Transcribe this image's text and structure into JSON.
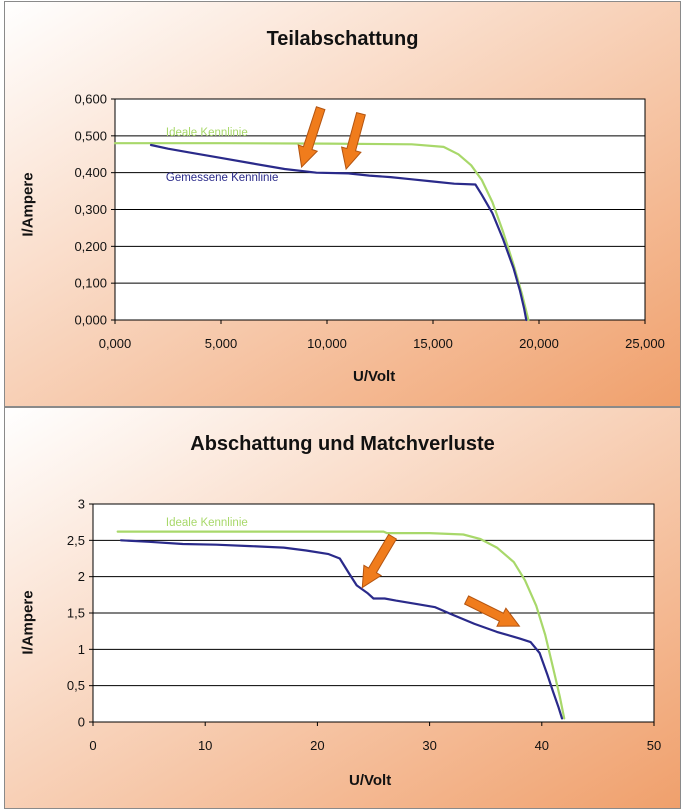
{
  "colors": {
    "ideal": "#a8d86a",
    "measured": "#2a2a8a",
    "arrow_fill": "#f07c1c",
    "arrow_stroke": "#b35410",
    "grid": "#000000",
    "plot_bg": "#ffffff",
    "panel_grad_start": "#ffffff",
    "panel_grad_end": "#f0a06c"
  },
  "chart_data": [
    {
      "type": "line",
      "title": "Teilabschattung",
      "xlabel": "U/Volt",
      "ylabel": "I/Ampere",
      "xlim": [
        0,
        25
      ],
      "ylim": [
        0,
        0.6
      ],
      "x_ticks": [
        0,
        5,
        10,
        15,
        20,
        25
      ],
      "x_tick_labels": [
        "0,000",
        "5,000",
        "10,000",
        "15,000",
        "20,000",
        "25,000"
      ],
      "y_ticks": [
        0,
        0.1,
        0.2,
        0.3,
        0.4,
        0.5,
        0.6
      ],
      "y_tick_labels": [
        "0,000",
        "0,100",
        "0,200",
        "0,300",
        "0,400",
        "0,500",
        "0,600"
      ],
      "grid": "horizontal",
      "series": [
        {
          "name": "Ideale Kennlinie",
          "color_key": "ideal",
          "x": [
            0,
            5,
            10,
            14,
            15.5,
            16.2,
            16.8,
            17.3,
            17.8,
            18.3,
            18.8,
            19.2,
            19.5
          ],
          "y": [
            0.48,
            0.48,
            0.479,
            0.477,
            0.47,
            0.45,
            0.42,
            0.38,
            0.32,
            0.24,
            0.15,
            0.07,
            0.0
          ]
        },
        {
          "name": "Gemessene Kennlinie",
          "color_key": "measured",
          "x": [
            1.7,
            2.5,
            3.5,
            5,
            6.5,
            8,
            9.5,
            11,
            12,
            13,
            14,
            15,
            16,
            17,
            17.3,
            17.8,
            18.3,
            18.8,
            19.1,
            19.3,
            19.4
          ],
          "y": [
            0.475,
            0.465,
            0.455,
            0.44,
            0.425,
            0.41,
            0.4,
            0.398,
            0.392,
            0.388,
            0.382,
            0.376,
            0.37,
            0.368,
            0.34,
            0.29,
            0.22,
            0.14,
            0.08,
            0.03,
            0.0
          ]
        }
      ],
      "annotations": [
        {
          "text": "Ideale Kennlinie",
          "x": 2.4,
          "y": 0.5,
          "color_key": "ideal"
        },
        {
          "text": "Gemessene Kennlinie",
          "x": 2.4,
          "y": 0.378,
          "color_key": "measured"
        }
      ],
      "arrows": [
        {
          "tip_x": 8.8,
          "tip_y": 0.415,
          "tail_x": 9.7,
          "tail_y": 0.575
        },
        {
          "tip_x": 10.9,
          "tip_y": 0.41,
          "tail_x": 11.6,
          "tail_y": 0.56
        }
      ]
    },
    {
      "type": "line",
      "title": "Abschattung und Matchverluste",
      "xlabel": "U/Volt",
      "ylabel": "I/Ampere",
      "xlim": [
        0,
        50
      ],
      "ylim": [
        0,
        3
      ],
      "x_ticks": [
        0,
        10,
        20,
        30,
        40,
        50
      ],
      "x_tick_labels": [
        "0",
        "10",
        "20",
        "30",
        "40",
        "50"
      ],
      "y_ticks": [
        0,
        0.5,
        1,
        1.5,
        2,
        2.5,
        3
      ],
      "y_tick_labels": [
        "0",
        "0,5",
        "1",
        "1,5",
        "2",
        "2,5",
        "3"
      ],
      "grid": "horizontal",
      "series": [
        {
          "name": "Ideale Kennlinie",
          "color_key": "ideal",
          "x": [
            2.2,
            10,
            20,
            25.9,
            26.2,
            30,
            33,
            34.5,
            36,
            37.5,
            38.5,
            39.5,
            40.3,
            41,
            41.6,
            42
          ],
          "y": [
            2.62,
            2.62,
            2.62,
            2.62,
            2.6,
            2.6,
            2.58,
            2.52,
            2.4,
            2.2,
            1.95,
            1.6,
            1.2,
            0.75,
            0.35,
            0.05
          ]
        },
        {
          "name": "Gemessene Kennlinie",
          "color_key": "measured",
          "x": [
            2.5,
            5,
            8,
            11,
            14,
            17,
            19,
            21,
            22,
            22.8,
            23.5,
            24.5,
            25,
            26,
            27,
            29,
            30.5,
            32,
            34,
            36,
            38,
            39,
            39.8,
            40.5,
            41,
            41.5,
            41.8
          ],
          "y": [
            2.5,
            2.48,
            2.45,
            2.44,
            2.42,
            2.4,
            2.36,
            2.31,
            2.25,
            2.05,
            1.88,
            1.77,
            1.7,
            1.7,
            1.67,
            1.62,
            1.58,
            1.48,
            1.35,
            1.24,
            1.15,
            1.1,
            0.95,
            0.65,
            0.42,
            0.2,
            0.05
          ]
        }
      ],
      "annotations": [
        {
          "text": "Ideale Kennlinie",
          "x": 6.5,
          "y": 2.7,
          "color_key": "ideal"
        }
      ],
      "arrows": [
        {
          "tip_x": 24,
          "tip_y": 1.85,
          "tail_x": 26.7,
          "tail_y": 2.55
        },
        {
          "tip_x": 38,
          "tip_y": 1.32,
          "tail_x": 33.3,
          "tail_y": 1.68
        }
      ]
    }
  ]
}
